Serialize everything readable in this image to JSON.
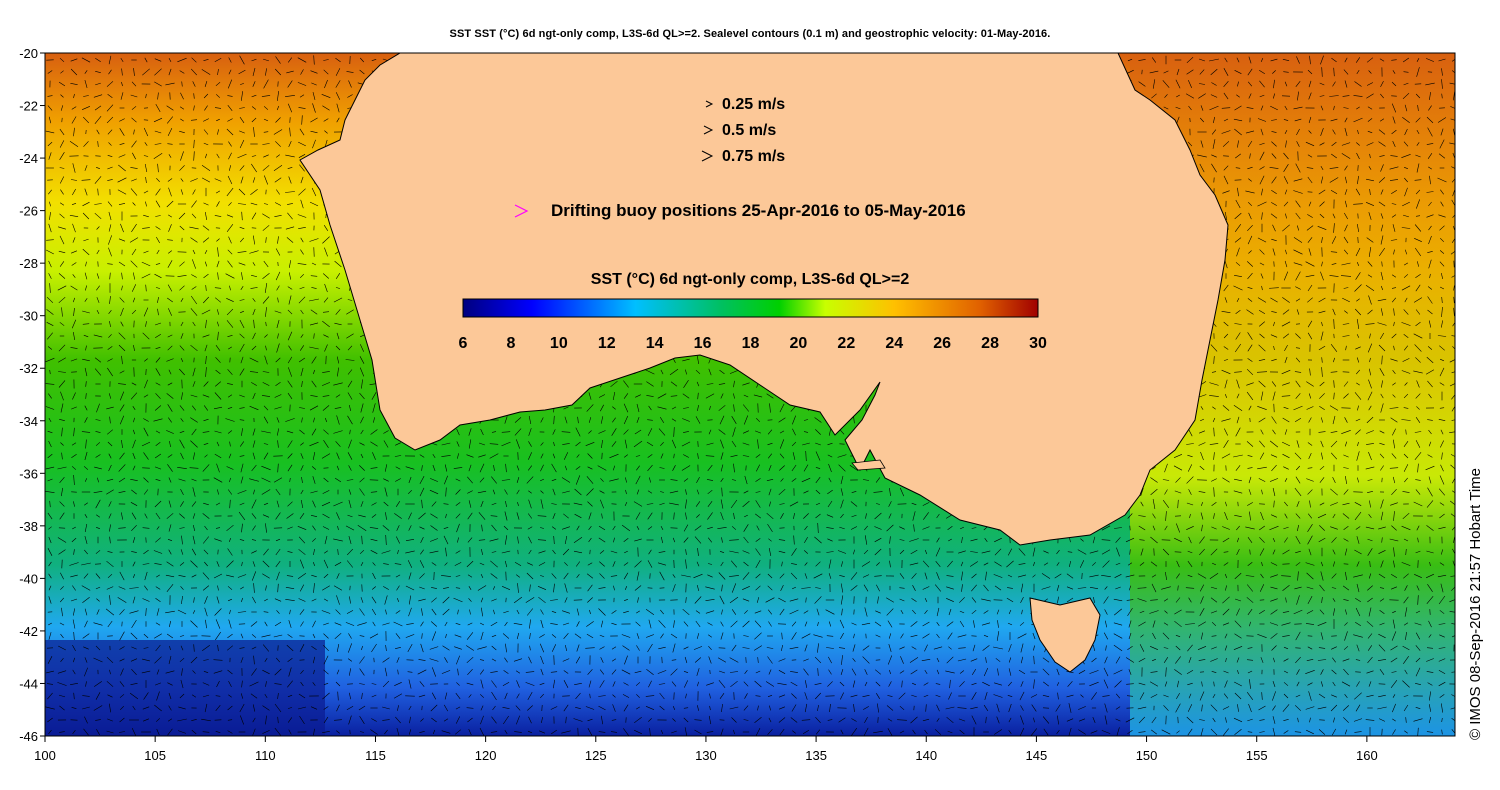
{
  "title": "SST SST (°C) 6d ngt-only comp, L3S-6d QL>=2. Sealevel contours (0.1 m) and geostrophic velocity: 01-May-2016.",
  "credit": "© IMOS 08-Sep-2016 21:57 Hobart Time",
  "axes": {
    "lon_range": [
      100,
      164
    ],
    "lat_range": [
      -46,
      -20
    ],
    "x_ticks": [
      "100",
      "105",
      "110",
      "115",
      "120",
      "125",
      "130",
      "135",
      "140",
      "145",
      "150",
      "155",
      "160"
    ],
    "y_ticks": [
      "-20",
      "-22",
      "-24",
      "-26",
      "-28",
      "-30",
      "-32",
      "-34",
      "-36",
      "-38",
      "-40",
      "-42",
      "-44",
      "-46"
    ]
  },
  "velocity_legend": [
    {
      "label": "0.25 m/s",
      "speed": 0.25
    },
    {
      "label": "0.5 m/s",
      "speed": 0.5
    },
    {
      "label": "0.75 m/s",
      "speed": 0.75
    }
  ],
  "buoy_legend": "Drifting buoy positions 25-Apr-2016 to 05-May-2016",
  "colorbar": {
    "title": "SST (°C) 6d ngt-only comp, L3S-6d QL>=2",
    "range": [
      6,
      30
    ],
    "ticks": [
      "6",
      "8",
      "10",
      "12",
      "14",
      "16",
      "18",
      "20",
      "22",
      "24",
      "26",
      "28",
      "30"
    ]
  },
  "colors": {
    "land": "#fcc898",
    "buoy": "#ff00ff",
    "arrow": "#000000",
    "contour": "#ffffff"
  }
}
